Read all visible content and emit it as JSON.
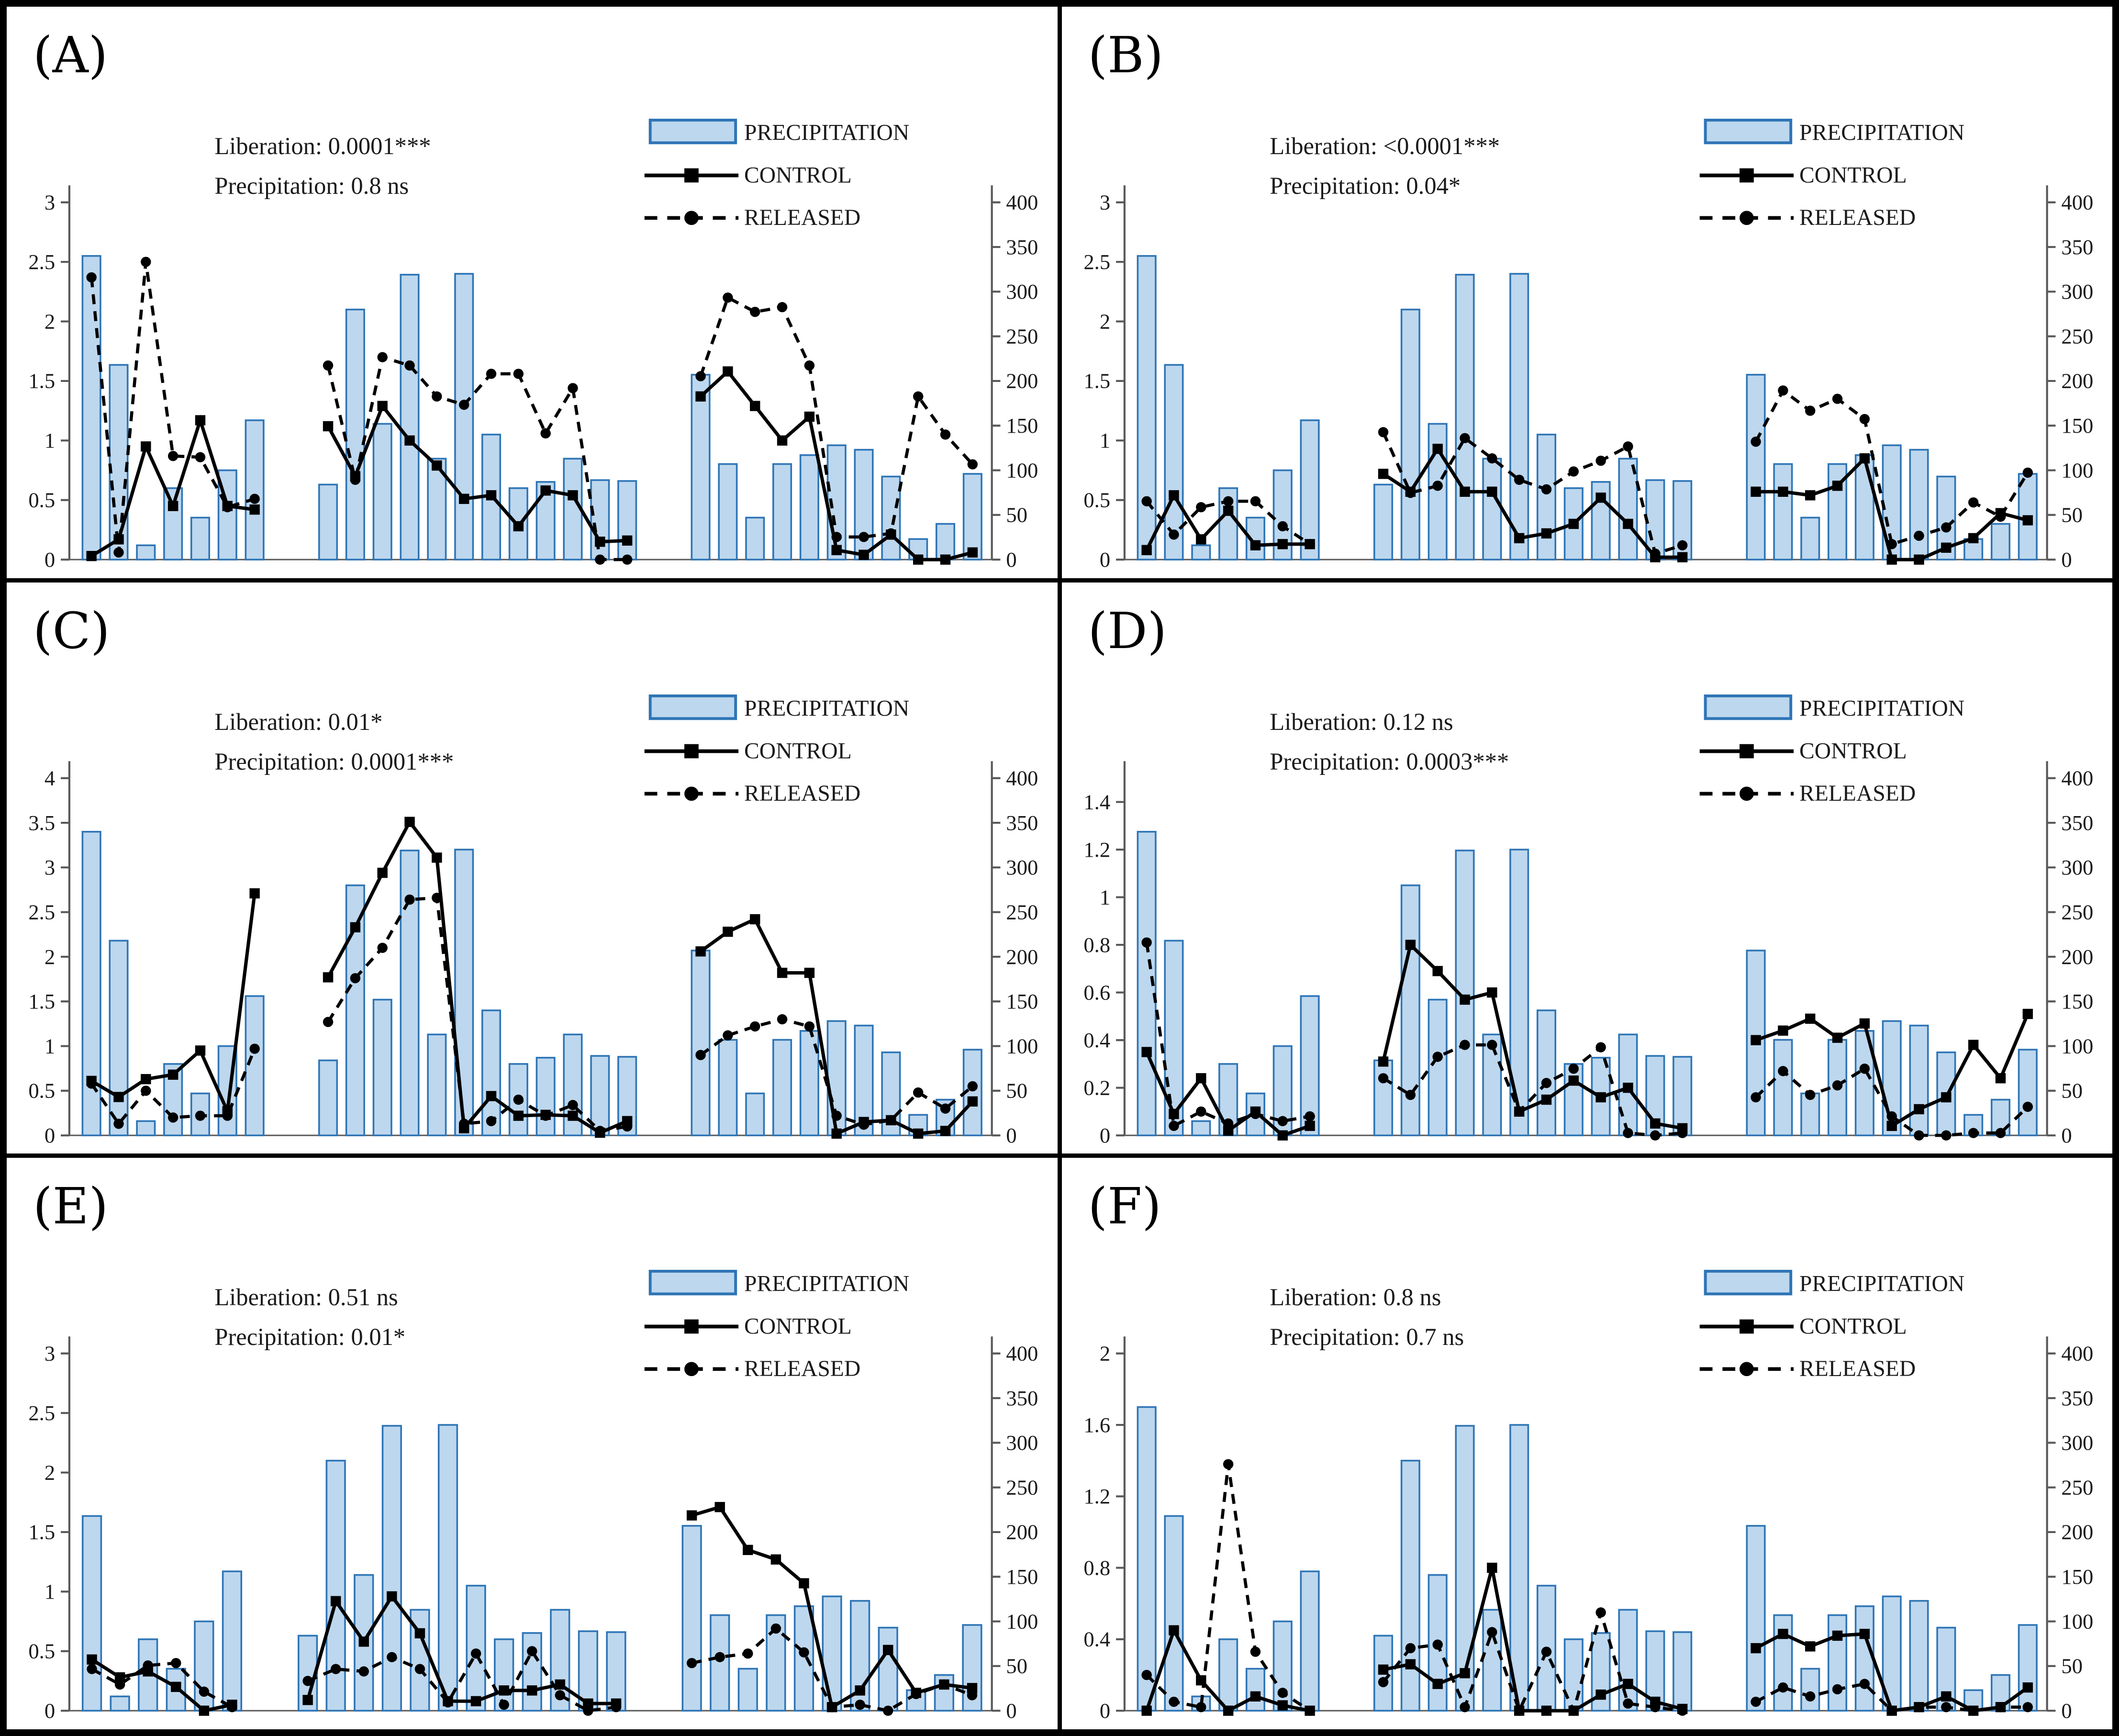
{
  "legend": {
    "precipitation": "PRECIPITATION",
    "control": "CONTROL",
    "released": "RELEASED"
  },
  "colors": {
    "bar_fill": "#BDD7EE",
    "bar_stroke": "#2E75B6",
    "line": "#000000",
    "axis": "#595959",
    "text": "#1a1a1a"
  },
  "chart_data": [
    {
      "panel": "(A)",
      "type": "combo-bar-line",
      "annotations": [
        "Liberation: 0.0001***",
        "Precipitation: 0.8 ns"
      ],
      "left_axis": {
        "min": 0,
        "max": 3,
        "ticks": [
          0,
          0.5,
          1,
          1.5,
          2,
          2.5,
          3
        ]
      },
      "right_axis": {
        "min": 0,
        "max": 400,
        "ticks": [
          0,
          50,
          100,
          150,
          200,
          250,
          300,
          350,
          400
        ]
      },
      "series": {
        "precipitation_mm": [
          [
            340,
            218,
            16,
            80,
            47,
            100,
            156
          ],
          [
            84,
            280,
            152,
            319,
            113,
            320,
            140,
            80,
            87,
            113,
            89,
            88
          ],
          [
            207,
            107,
            47,
            107,
            117,
            128,
            123,
            93,
            23,
            40,
            96
          ]
        ],
        "control": [
          [
            0.03,
            0.17,
            0.95,
            0.45,
            1.17,
            0.45,
            0.42
          ],
          [
            1.12,
            0.7,
            1.29,
            1.0,
            0.79,
            0.51,
            0.54,
            0.28,
            0.58,
            0.54,
            0.15,
            0.16
          ],
          [
            1.37,
            1.58,
            1.29,
            1.0,
            1.2,
            0.08,
            0.04,
            0.21,
            0.0,
            0.0,
            0.06
          ]
        ],
        "released": [
          [
            2.37,
            0.06,
            2.5,
            0.87,
            0.86,
            0.44,
            0.51
          ],
          [
            1.63,
            0.67,
            1.7,
            1.63,
            1.37,
            1.3,
            1.56,
            1.56,
            1.06,
            1.44,
            0.0,
            0.0
          ],
          [
            1.54,
            2.2,
            2.08,
            2.12,
            1.63,
            0.19,
            0.19,
            0.22,
            1.37,
            1.05,
            0.8
          ]
        ]
      }
    },
    {
      "panel": "(B)",
      "type": "combo-bar-line",
      "annotations": [
        "Liberation: <0.0001***",
        "Precipitation: 0.04*"
      ],
      "left_axis": {
        "min": 0,
        "max": 3,
        "ticks": [
          0,
          0.5,
          1,
          1.5,
          2,
          2.5,
          3
        ]
      },
      "right_axis": {
        "min": 0,
        "max": 400,
        "ticks": [
          0,
          50,
          100,
          150,
          200,
          250,
          300,
          350,
          400
        ]
      },
      "series": {
        "precipitation_mm": [
          [
            340,
            218,
            16,
            80,
            47,
            100,
            156
          ],
          [
            84,
            280,
            152,
            319,
            113,
            320,
            140,
            80,
            87,
            113,
            89,
            88
          ],
          [
            207,
            107,
            47,
            107,
            117,
            128,
            123,
            93,
            23,
            40,
            96
          ]
        ],
        "control": [
          [
            0.08,
            0.54,
            0.17,
            0.41,
            0.12,
            0.13,
            0.13
          ],
          [
            0.72,
            0.57,
            0.93,
            0.57,
            0.57,
            0.18,
            0.22,
            0.3,
            0.52,
            0.3,
            0.02,
            0.02
          ],
          [
            0.57,
            0.57,
            0.54,
            0.62,
            0.85,
            0.0,
            0.0,
            0.1,
            0.18,
            0.39,
            0.33
          ]
        ],
        "released": [
          [
            0.49,
            0.21,
            0.44,
            0.49,
            0.49,
            0.28,
            0.13
          ],
          [
            1.07,
            0.56,
            0.62,
            1.02,
            0.85,
            0.67,
            0.59,
            0.74,
            0.83,
            0.95,
            0.05,
            0.12
          ],
          [
            0.99,
            1.42,
            1.25,
            1.35,
            1.18,
            0.13,
            0.2,
            0.27,
            0.48,
            0.36,
            0.73
          ]
        ]
      }
    },
    {
      "panel": "(C)",
      "type": "combo-bar-line",
      "annotations": [
        "Liberation: 0.01*",
        "Precipitation: 0.0001***"
      ],
      "left_axis": {
        "min": 0,
        "max": 4,
        "ticks": [
          0,
          0.5,
          1,
          1.5,
          2,
          2.5,
          3,
          3.5,
          4
        ]
      },
      "right_axis": {
        "min": 0,
        "max": 400,
        "ticks": [
          0,
          50,
          100,
          150,
          200,
          250,
          300,
          350,
          400
        ]
      },
      "series": {
        "precipitation_mm": [
          [
            340,
            218,
            16,
            80,
            47,
            100,
            156
          ],
          [
            84,
            280,
            152,
            319,
            113,
            320,
            140,
            80,
            87,
            113,
            89,
            88
          ],
          [
            207,
            107,
            47,
            107,
            117,
            128,
            123,
            93,
            23,
            40,
            96
          ]
        ],
        "control": [
          [
            0.61,
            0.43,
            0.63,
            0.68,
            0.95,
            0.27,
            2.71
          ],
          [
            1.77,
            2.33,
            2.94,
            3.51,
            3.11,
            0.08,
            0.44,
            0.22,
            0.23,
            0.22,
            0.03,
            0.16
          ],
          [
            2.06,
            2.28,
            2.42,
            1.82,
            1.82,
            0.02,
            0.15,
            0.17,
            0.02,
            0.05,
            0.38
          ]
        ],
        "released": [
          [
            0.58,
            0.13,
            0.5,
            0.2,
            0.22,
            0.22,
            0.97
          ],
          [
            1.27,
            1.76,
            2.1,
            2.64,
            2.66,
            0.13,
            0.16,
            0.4,
            0.22,
            0.34,
            0.05,
            0.1
          ],
          [
            0.9,
            1.12,
            1.22,
            1.3,
            1.22,
            0.22,
            0.12,
            0.17,
            0.48,
            0.3,
            0.55
          ]
        ]
      }
    },
    {
      "panel": "(D)",
      "type": "combo-bar-line",
      "annotations": [
        "Liberation: 0.12 ns",
        "Precipitation: 0.0003***"
      ],
      "left_axis": {
        "min": 0,
        "max": 1.5,
        "ticks": [
          0,
          0.2,
          0.4,
          0.6,
          0.8,
          1,
          1.2,
          1.4
        ]
      },
      "right_axis": {
        "min": 0,
        "max": 400,
        "ticks": [
          0,
          50,
          100,
          150,
          200,
          250,
          300,
          350,
          400
        ]
      },
      "series": {
        "precipitation_mm": [
          [
            340,
            218,
            16,
            80,
            47,
            100,
            156
          ],
          [
            84,
            280,
            152,
            319,
            113,
            320,
            140,
            80,
            87,
            113,
            89,
            88
          ],
          [
            207,
            107,
            47,
            107,
            117,
            128,
            123,
            93,
            23,
            40,
            96
          ]
        ],
        "control": [
          [
            0.35,
            0.09,
            0.24,
            0.02,
            0.1,
            0.0,
            0.04
          ],
          [
            0.31,
            0.8,
            0.69,
            0.57,
            0.6,
            0.1,
            0.15,
            0.23,
            0.16,
            0.2,
            0.05,
            0.03
          ],
          [
            0.4,
            0.44,
            0.49,
            0.41,
            0.47,
            0.04,
            0.11,
            0.16,
            0.38,
            0.24,
            0.51
          ]
        ],
        "released": [
          [
            0.81,
            0.04,
            0.1,
            0.05,
            0.09,
            0.06,
            0.08
          ],
          [
            0.24,
            0.17,
            0.33,
            0.38,
            0.38,
            0.1,
            0.22,
            0.28,
            0.37,
            0.01,
            0.0,
            0.01
          ],
          [
            0.16,
            0.27,
            0.17,
            0.21,
            0.28,
            0.08,
            0.0,
            0.0,
            0.01,
            0.01,
            0.12
          ]
        ]
      }
    },
    {
      "panel": "(E)",
      "type": "combo-bar-line",
      "annotations": [
        "Liberation: 0.51 ns",
        "Precipitation: 0.01*"
      ],
      "left_axis": {
        "min": 0,
        "max": 3,
        "ticks": [
          0,
          0.5,
          1,
          1.5,
          2,
          2.5,
          3
        ]
      },
      "right_axis": {
        "min": 0,
        "max": 400,
        "ticks": [
          0,
          50,
          100,
          150,
          200,
          250,
          300,
          350,
          400
        ]
      },
      "series": {
        "precipitation_mm": [
          [
            218,
            16,
            80,
            47,
            100,
            156
          ],
          [
            84,
            280,
            152,
            319,
            113,
            320,
            140,
            80,
            87,
            113,
            89,
            88
          ],
          [
            207,
            107,
            47,
            107,
            117,
            128,
            123,
            93,
            23,
            40,
            96
          ]
        ],
        "control": [
          [
            0.43,
            0.28,
            0.33,
            0.2,
            0.0,
            0.05
          ],
          [
            0.09,
            0.92,
            0.58,
            0.96,
            0.65,
            0.08,
            0.08,
            0.17,
            0.17,
            0.22,
            0.06,
            0.06
          ],
          [
            1.64,
            1.71,
            1.35,
            1.27,
            1.07,
            0.03,
            0.17,
            0.51,
            0.15,
            0.22,
            0.19
          ]
        ],
        "released": [
          [
            0.35,
            0.22,
            0.38,
            0.4,
            0.16,
            0.03
          ],
          [
            0.25,
            0.35,
            0.33,
            0.45,
            0.35,
            0.07,
            0.48,
            0.05,
            0.5,
            0.13,
            0.0,
            0.03
          ],
          [
            0.4,
            0.45,
            0.48,
            0.69,
            0.49,
            0.03,
            0.05,
            0.0,
            0.14,
            0.22,
            0.13
          ]
        ]
      }
    },
    {
      "panel": "(F)",
      "type": "combo-bar-line",
      "annotations": [
        "Liberation: 0.8 ns",
        "Precipitation: 0.7 ns"
      ],
      "left_axis": {
        "min": 0,
        "max": 2,
        "ticks": [
          0,
          0.4,
          0.8,
          1.2,
          1.6,
          2
        ]
      },
      "right_axis": {
        "min": 0,
        "max": 400,
        "ticks": [
          0,
          50,
          100,
          150,
          200,
          250,
          300,
          350,
          400
        ]
      },
      "series": {
        "precipitation_mm": [
          [
            340,
            218,
            16,
            80,
            47,
            100,
            156
          ],
          [
            84,
            280,
            152,
            319,
            113,
            320,
            140,
            80,
            87,
            113,
            89,
            88
          ],
          [
            207,
            107,
            47,
            107,
            117,
            128,
            123,
            93,
            23,
            40,
            96
          ]
        ],
        "control": [
          [
            0.0,
            0.45,
            0.17,
            0.0,
            0.08,
            0.03,
            0.0
          ],
          [
            0.23,
            0.26,
            0.15,
            0.21,
            0.8,
            0.0,
            0.0,
            0.0,
            0.09,
            0.15,
            0.05,
            0.01
          ],
          [
            0.35,
            0.43,
            0.36,
            0.42,
            0.43,
            0.0,
            0.02,
            0.08,
            0.0,
            0.02,
            0.13
          ]
        ],
        "released": [
          [
            0.2,
            0.05,
            0.02,
            1.38,
            0.33,
            0.1,
            0.0
          ],
          [
            0.16,
            0.35,
            0.37,
            0.02,
            0.44,
            0.0,
            0.33,
            0.0,
            0.55,
            0.04,
            0.02,
            0.0
          ],
          [
            0.05,
            0.13,
            0.08,
            0.12,
            0.15,
            0.0,
            0.02,
            0.02,
            0.0,
            0.02,
            0.02
          ]
        ]
      }
    }
  ]
}
